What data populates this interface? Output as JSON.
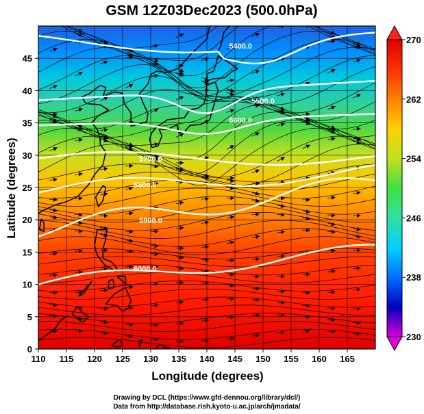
{
  "title": "GSM 12Z03Dec2023 (500.0hPa)",
  "xlabel": "Longitude (degrees)",
  "ylabel": "Latitude  (degrees)",
  "credit_line1": "Drawing by DCL (https://www.gfd-dennou.org/library/dcl/)",
  "credit_line2": "Data from http://database.rish.kyoto-u.ac.jp/arch/jmadata/",
  "chart_data": {
    "type": "heatmap",
    "x_range": [
      110,
      170
    ],
    "y_range": [
      0,
      50
    ],
    "x_ticks": [
      110,
      115,
      120,
      125,
      130,
      135,
      140,
      145,
      150,
      155,
      160,
      165
    ],
    "y_ticks": [
      0,
      5,
      10,
      15,
      20,
      25,
      30,
      35,
      40,
      45
    ],
    "grid": true,
    "colorbar": {
      "min": 230,
      "max": 270,
      "ticks": [
        230,
        238,
        246,
        254,
        262,
        270
      ],
      "colors": [
        "#d800d8",
        "#0000c0",
        "#0070ff",
        "#00d0ff",
        "#30e0a0",
        "#40e040",
        "#c0e020",
        "#ffd000",
        "#ff8000",
        "#ff3000",
        "#e00000"
      ],
      "placement": "right"
    },
    "height_contours": [
      {
        "label": "5400.0",
        "x": 146,
        "y": 46.5
      },
      {
        "label": "5500.0",
        "x": 150,
        "y": 38
      },
      {
        "label": "5600.0",
        "x": 146,
        "y": 35
      },
      {
        "label": "5700.0",
        "x": 130,
        "y": 29
      },
      {
        "label": "5800.0",
        "x": 129,
        "y": 25
      },
      {
        "label": "5900.0",
        "x": 130,
        "y": 19.5
      },
      {
        "label": "6000.0",
        "x": 129,
        "y": 12
      }
    ]
  }
}
